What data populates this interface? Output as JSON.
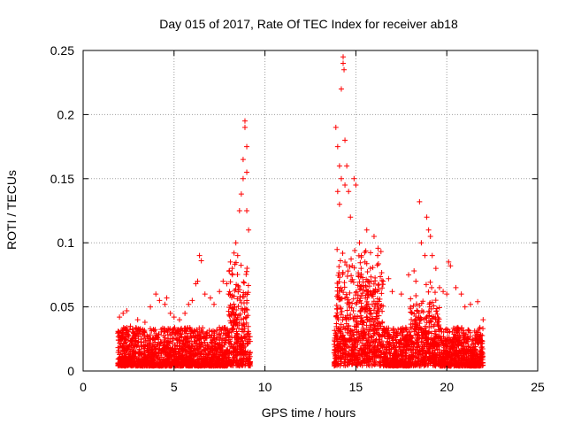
{
  "chart_data": {
    "type": "scatter",
    "title": "Day 015 of 2017, Rate Of TEC Index for receiver ab18",
    "xlabel": "GPS time / hours",
    "ylabel": "ROTI / TECUs",
    "xlim": [
      0,
      25
    ],
    "ylim": [
      0,
      0.25
    ],
    "x_ticks": [
      0,
      5,
      10,
      15,
      20,
      25
    ],
    "x_tick_labels": [
      "0",
      "5",
      "10",
      "15",
      "20",
      "25"
    ],
    "y_ticks": [
      0,
      0.05,
      0.1,
      0.15,
      0.2,
      0.25
    ],
    "y_tick_labels": [
      "0",
      "0.05",
      "0.1",
      "0.15",
      "0.2",
      "0.25"
    ],
    "grid": true,
    "marker": "plus",
    "color": "#ff0000",
    "series": [
      {
        "name": "ROTI",
        "points": [
          [
            2.0,
            0.042
          ],
          [
            2.2,
            0.045
          ],
          [
            2.4,
            0.047
          ],
          [
            2.6,
            0.035
          ],
          [
            3.0,
            0.04
          ],
          [
            3.4,
            0.038
          ],
          [
            3.7,
            0.05
          ],
          [
            4.0,
            0.06
          ],
          [
            4.2,
            0.055
          ],
          [
            4.5,
            0.052
          ],
          [
            4.6,
            0.057
          ],
          [
            4.8,
            0.045
          ],
          [
            5.0,
            0.042
          ],
          [
            5.3,
            0.04
          ],
          [
            5.6,
            0.045
          ],
          [
            5.8,
            0.052
          ],
          [
            6.0,
            0.055
          ],
          [
            6.2,
            0.068
          ],
          [
            6.3,
            0.07
          ],
          [
            6.4,
            0.09
          ],
          [
            6.5,
            0.086
          ],
          [
            6.7,
            0.06
          ],
          [
            7.0,
            0.057
          ],
          [
            7.2,
            0.052
          ],
          [
            7.5,
            0.062
          ],
          [
            7.7,
            0.07
          ],
          [
            7.9,
            0.068
          ],
          [
            8.0,
            0.06
          ],
          [
            8.1,
            0.085
          ],
          [
            8.2,
            0.08
          ],
          [
            8.3,
            0.092
          ],
          [
            8.4,
            0.1
          ],
          [
            8.5,
            0.09
          ],
          [
            8.6,
            0.125
          ],
          [
            8.7,
            0.138
          ],
          [
            8.8,
            0.15
          ],
          [
            8.8,
            0.165
          ],
          [
            8.9,
            0.19
          ],
          [
            8.9,
            0.195
          ],
          [
            9.0,
            0.175
          ],
          [
            9.0,
            0.155
          ],
          [
            9.0,
            0.125
          ],
          [
            9.1,
            0.11
          ],
          [
            13.9,
            0.19
          ],
          [
            14.0,
            0.175
          ],
          [
            14.0,
            0.14
          ],
          [
            14.1,
            0.16
          ],
          [
            14.1,
            0.13
          ],
          [
            14.2,
            0.22
          ],
          [
            14.2,
            0.15
          ],
          [
            14.3,
            0.245
          ],
          [
            14.3,
            0.24
          ],
          [
            14.35,
            0.235
          ],
          [
            14.4,
            0.18
          ],
          [
            14.4,
            0.145
          ],
          [
            14.5,
            0.16
          ],
          [
            14.6,
            0.14
          ],
          [
            14.7,
            0.12
          ],
          [
            14.9,
            0.15
          ],
          [
            15.0,
            0.145
          ],
          [
            15.2,
            0.1
          ],
          [
            15.3,
            0.09
          ],
          [
            15.5,
            0.085
          ],
          [
            15.6,
            0.11
          ],
          [
            15.8,
            0.08
          ],
          [
            16.0,
            0.105
          ],
          [
            16.2,
            0.09
          ],
          [
            16.5,
            0.07
          ],
          [
            16.8,
            0.072
          ],
          [
            17.0,
            0.062
          ],
          [
            17.5,
            0.06
          ],
          [
            17.9,
            0.075
          ],
          [
            18.2,
            0.078
          ],
          [
            18.3,
            0.07
          ],
          [
            18.5,
            0.132
          ],
          [
            18.6,
            0.1
          ],
          [
            18.8,
            0.09
          ],
          [
            18.9,
            0.12
          ],
          [
            19.0,
            0.11
          ],
          [
            19.1,
            0.105
          ],
          [
            19.2,
            0.09
          ],
          [
            19.4,
            0.08
          ],
          [
            19.6,
            0.065
          ],
          [
            19.8,
            0.062
          ],
          [
            20.0,
            0.06
          ],
          [
            20.1,
            0.085
          ],
          [
            20.2,
            0.082
          ],
          [
            20.5,
            0.065
          ],
          [
            20.8,
            0.06
          ],
          [
            21.0,
            0.05
          ],
          [
            21.3,
            0.052
          ],
          [
            21.7,
            0.054
          ],
          [
            22.0,
            0.04
          ]
        ]
      }
    ]
  }
}
